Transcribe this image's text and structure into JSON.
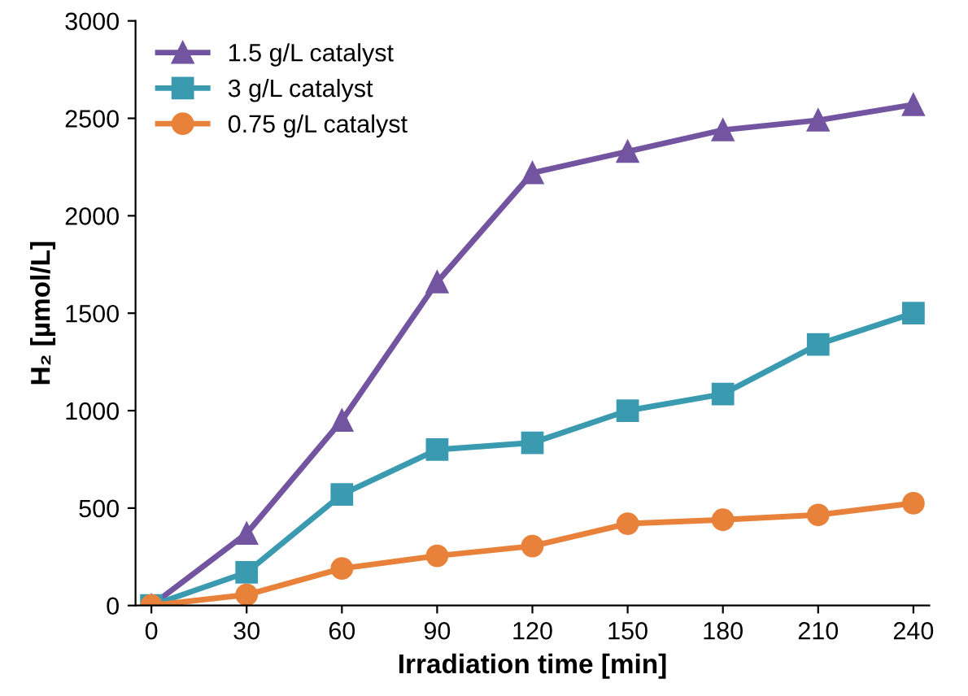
{
  "chart_data": {
    "type": "line",
    "xlabel": "Irradiation time [min]",
    "ylabel": "H₂ [µmol/L]",
    "x": [
      0,
      30,
      60,
      90,
      120,
      150,
      180,
      210,
      240
    ],
    "series": [
      {
        "name": "1.5 g/L catalyst",
        "color": "#7354a0",
        "marker": "triangle",
        "values": [
          0,
          370,
          950,
          1660,
          2220,
          2330,
          2440,
          2490,
          2570
        ]
      },
      {
        "name": "3 g/L catalyst",
        "color": "#3a9bb0",
        "marker": "square",
        "values": [
          0,
          170,
          570,
          800,
          835,
          1000,
          1085,
          1340,
          1500
        ]
      },
      {
        "name": "0.75 g/L catalyst",
        "color": "#e8823a",
        "marker": "circle",
        "values": [
          0,
          55,
          190,
          255,
          305,
          420,
          440,
          465,
          525
        ]
      }
    ],
    "xlim": [
      -5,
      245
    ],
    "xticks": [
      0,
      30,
      60,
      90,
      120,
      150,
      180,
      210,
      240
    ],
    "ylim": [
      0,
      3000
    ],
    "yticks": [
      0,
      500,
      1000,
      1500,
      2000,
      2500,
      3000
    ],
    "grid": false,
    "legend": "top left",
    "line_style": "solid"
  }
}
